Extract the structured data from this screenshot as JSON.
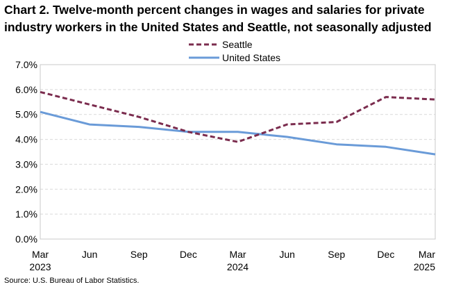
{
  "chart_data": {
    "type": "line",
    "title": "Chart 2. Twelve-month percent changes in wages and salaries for private industry workers in the United States and Seattle, not seasonally adjusted",
    "categories": [
      [
        "Mar",
        "2023"
      ],
      [
        "Jun",
        ""
      ],
      [
        "Sep",
        ""
      ],
      [
        "Dec",
        ""
      ],
      [
        "Mar",
        "2024"
      ],
      [
        "Jun",
        ""
      ],
      [
        "Sep",
        ""
      ],
      [
        "Dec",
        ""
      ],
      [
        "Mar",
        "2025"
      ]
    ],
    "series": [
      {
        "name": "Seattle",
        "color": "#7b2c4e",
        "style": "dashed",
        "values": [
          5.9,
          5.4,
          4.9,
          4.3,
          3.9,
          4.6,
          4.7,
          5.7,
          5.6
        ]
      },
      {
        "name": "United States",
        "color": "#6a9bd8",
        "style": "solid",
        "values": [
          5.1,
          4.6,
          4.5,
          4.3,
          4.3,
          4.1,
          3.8,
          3.7,
          3.4
        ]
      }
    ],
    "ylim": [
      0,
      7
    ],
    "yticks": [
      "0.0%",
      "1.0%",
      "2.0%",
      "3.0%",
      "4.0%",
      "5.0%",
      "6.0%",
      "7.0%"
    ],
    "grid": true,
    "legend": "top-center",
    "xlabel": "",
    "ylabel": ""
  },
  "source": "Source: U.S. Bureau of Labor Statistics."
}
